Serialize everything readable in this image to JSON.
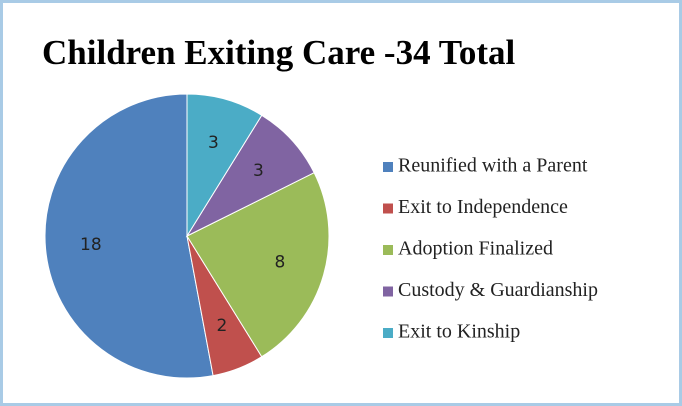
{
  "chart_data": {
    "type": "pie",
    "title": "Children Exiting Care -34 Total",
    "categories": [
      "Reunified with a Parent",
      "Exit to Independence",
      "Adoption Finalized",
      "Custody & Guardianship",
      "Exit to Kinship"
    ],
    "values": [
      18,
      2,
      8,
      3,
      3
    ],
    "colors": [
      "#4f81bd",
      "#c0504d",
      "#9bbb59",
      "#8064a2",
      "#4bacc6"
    ],
    "legend": "right"
  }
}
